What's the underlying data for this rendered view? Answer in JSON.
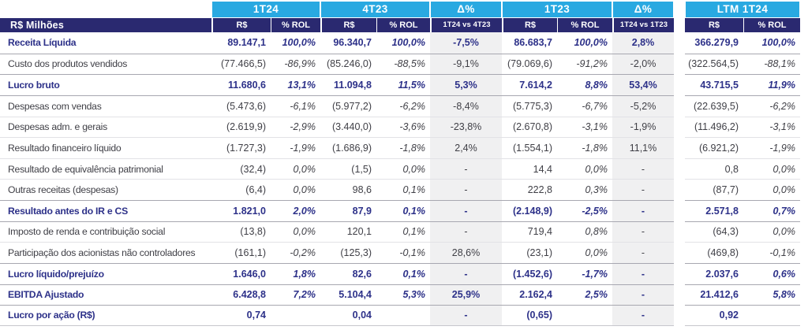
{
  "unit_label": "R$ Milhões",
  "header": {
    "groups": [
      {
        "label": "1T24",
        "subs": [
          "R$",
          "% ROL"
        ]
      },
      {
        "label": "4T23",
        "subs": [
          "R$",
          "% ROL"
        ]
      },
      {
        "label": "Δ%",
        "subs": [
          "1T24 vs 4T23"
        ]
      },
      {
        "label": "1T23",
        "subs": [
          "R$",
          "% ROL"
        ]
      },
      {
        "label": "Δ%",
        "subs": [
          "1T24 vs 1T23"
        ]
      },
      {
        "label": "LTM 1T24",
        "subs": [
          "R$",
          "% ROL"
        ]
      }
    ]
  },
  "rows": [
    {
      "label": "Receita Líquida",
      "bold": true,
      "cells": [
        "89.147,1",
        "100,0%",
        "96.340,7",
        "100,0%",
        "-7,5%",
        "86.683,7",
        "100,0%",
        "2,8%",
        "366.279,9",
        "100,0%"
      ]
    },
    {
      "label": "Custo dos produtos vendidos",
      "bold": false,
      "cells": [
        "(77.466,5)",
        "-86,9%",
        "(85.246,0)",
        "-88,5%",
        "-9,1%",
        "(79.069,6)",
        "-91,2%",
        "-2,0%",
        "(322.564,5)",
        "-88,1%"
      ]
    },
    {
      "label": "Lucro bruto",
      "bold": true,
      "cells": [
        "11.680,6",
        "13,1%",
        "11.094,8",
        "11,5%",
        "5,3%",
        "7.614,2",
        "8,8%",
        "53,4%",
        "43.715,5",
        "11,9%"
      ]
    },
    {
      "label": "Despesas com vendas",
      "bold": false,
      "cells": [
        "(5.473,6)",
        "-6,1%",
        "(5.977,2)",
        "-6,2%",
        "-8,4%",
        "(5.775,3)",
        "-6,7%",
        "-5,2%",
        "(22.639,5)",
        "-6,2%"
      ]
    },
    {
      "label": "Despesas adm. e gerais",
      "bold": false,
      "cells": [
        "(2.619,9)",
        "-2,9%",
        "(3.440,0)",
        "-3,6%",
        "-23,8%",
        "(2.670,8)",
        "-3,1%",
        "-1,9%",
        "(11.496,2)",
        "-3,1%"
      ]
    },
    {
      "label": "Resultado financeiro líquido",
      "bold": false,
      "cells": [
        "(1.727,3)",
        "-1,9%",
        "(1.686,9)",
        "-1,8%",
        "2,4%",
        "(1.554,1)",
        "-1,8%",
        "11,1%",
        "(6.921,2)",
        "-1,9%"
      ]
    },
    {
      "label": "Resultado de equivalência patrimonial",
      "bold": false,
      "cells": [
        "(32,4)",
        "0,0%",
        "(1,5)",
        "0,0%",
        "-",
        "14,4",
        "0,0%",
        "-",
        "0,8",
        "0,0%"
      ]
    },
    {
      "label": "Outras receitas (despesas)",
      "bold": false,
      "cells": [
        "(6,4)",
        "0,0%",
        "98,6",
        "0,1%",
        "-",
        "222,8",
        "0,3%",
        "-",
        "(87,7)",
        "0,0%"
      ]
    },
    {
      "label": "Resultado antes do IR e CS",
      "bold": true,
      "cells": [
        "1.821,0",
        "2,0%",
        "87,9",
        "0,1%",
        "-",
        "(2.148,9)",
        "-2,5%",
        "-",
        "2.571,8",
        "0,7%"
      ]
    },
    {
      "label": "Imposto de renda e contribuição social",
      "bold": false,
      "cells": [
        "(13,8)",
        "0,0%",
        "120,1",
        "0,1%",
        "-",
        "719,4",
        "0,8%",
        "-",
        "(64,3)",
        "0,0%"
      ]
    },
    {
      "label": "Participação dos acionistas não controladores",
      "bold": false,
      "cells": [
        "(161,1)",
        "-0,2%",
        "(125,3)",
        "-0,1%",
        "28,6%",
        "(23,1)",
        "0,0%",
        "-",
        "(469,8)",
        "-0,1%"
      ]
    },
    {
      "label": "Lucro líquido/prejuízo",
      "bold": true,
      "cells": [
        "1.646,0",
        "1,8%",
        "82,6",
        "0,1%",
        "-",
        "(1.452,6)",
        "-1,7%",
        "-",
        "2.037,6",
        "0,6%"
      ]
    },
    {
      "label": "EBITDA Ajustado",
      "bold": true,
      "cells": [
        "6.428,8",
        "7,2%",
        "5.104,4",
        "5,3%",
        "25,9%",
        "2.162,4",
        "2,5%",
        "-",
        "21.412,6",
        "5,8%"
      ]
    },
    {
      "label": "Lucro por ação (R$)",
      "bold": true,
      "cells": [
        "0,74",
        "",
        "0,04",
        "",
        "-",
        "(0,65)",
        "",
        "-",
        "0,92",
        ""
      ]
    }
  ],
  "columns": [
    "1t24-rs",
    "1t24-rol",
    "4t23-rs",
    "4t23-rol",
    "delta-1t24-vs-4t23",
    "1t23-rs",
    "1t23-rol",
    "delta-1t24-vs-1t23",
    "ltm-1t24-rs",
    "ltm-1t24-rol"
  ],
  "colors": {
    "header_blue": "#29A9E1",
    "header_navy": "#2A2970",
    "accent_text": "#2D3189",
    "body_text": "#3F3F46",
    "delta_column_bg": "#F0F0F1"
  }
}
